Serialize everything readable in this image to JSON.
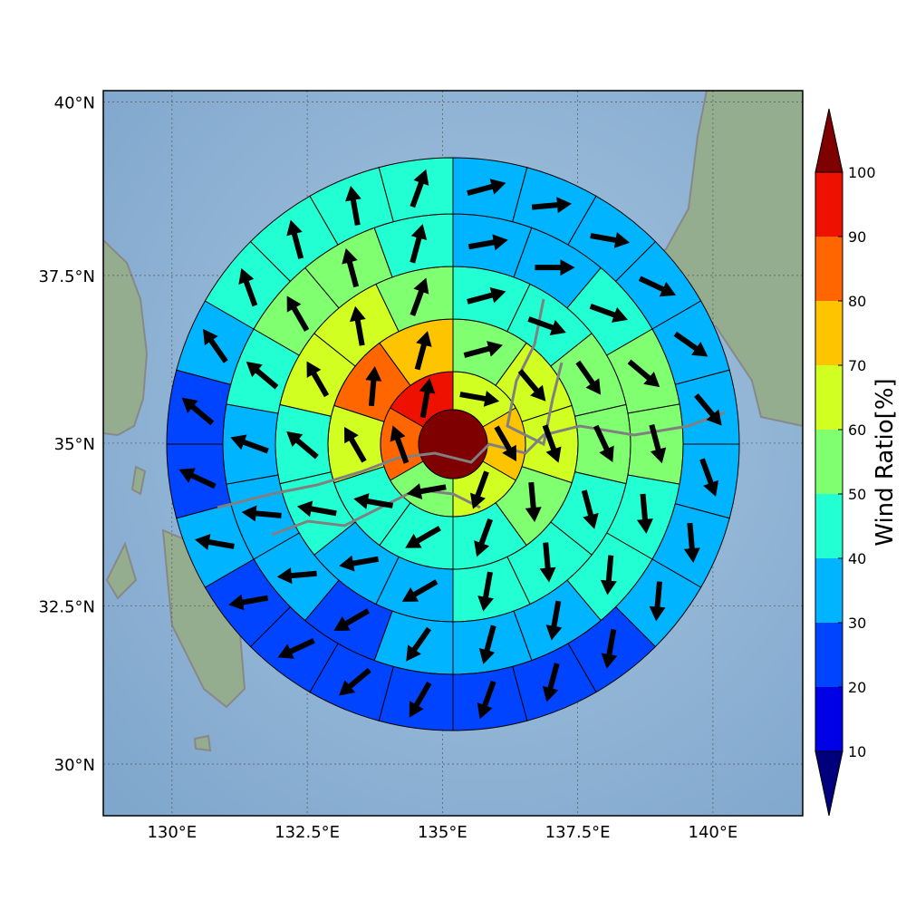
{
  "chart_data": {
    "type": "polar_sectors",
    "projection": "mercator",
    "xlim": [
      128.73,
      141.66
    ],
    "ylim": [
      29.17,
      40.16
    ],
    "xticks": [
      {
        "value": 130,
        "label": "130°E"
      },
      {
        "value": 132.5,
        "label": "132.5°E"
      },
      {
        "value": 135,
        "label": "135°E"
      },
      {
        "value": 137.5,
        "label": "137.5°E"
      },
      {
        "value": 140,
        "label": "140°E"
      }
    ],
    "yticks": [
      {
        "value": 30,
        "label": "30°N"
      },
      {
        "value": 32.5,
        "label": "32.5°N"
      },
      {
        "value": 35,
        "label": "35°N"
      },
      {
        "value": 37.5,
        "label": "37.5°N"
      },
      {
        "value": 40,
        "label": "40°N"
      }
    ],
    "grid": true,
    "center_value": 105,
    "rings": [
      {
        "values": [
          65,
          75,
          65,
          55,
          85,
          95
        ],
        "directions": [
          100,
          150,
          200,
          260,
          340,
          10
        ]
      },
      {
        "values": [
          55,
          65,
          65,
          55,
          45,
          45,
          45,
          65,
          85,
          75
        ],
        "directions": [
          75,
          140,
          160,
          175,
          200,
          240,
          280,
          330,
          5,
          15
        ]
      },
      {
        "values": [
          45,
          45,
          55,
          55,
          45,
          45,
          45,
          35,
          35,
          45,
          45,
          65,
          65,
          55
        ],
        "directions": [
          75,
          110,
          145,
          155,
          165,
          175,
          190,
          240,
          260,
          280,
          310,
          330,
          350,
          20
        ]
      },
      {
        "values": [
          35,
          35,
          45,
          55,
          55,
          45,
          45,
          35,
          35,
          35,
          25,
          35,
          35,
          35,
          45,
          55,
          55,
          45
        ],
        "directions": [
          80,
          90,
          110,
          130,
          165,
          175,
          185,
          190,
          195,
          215,
          240,
          265,
          275,
          290,
          310,
          330,
          345,
          15
        ]
      },
      {
        "values": [
          35,
          35,
          35,
          35,
          35,
          35,
          35,
          35,
          35,
          25,
          25,
          25,
          25,
          25,
          25,
          25,
          35,
          25,
          25,
          35,
          45,
          45,
          45,
          45
        ],
        "directions": [
          75,
          85,
          100,
          115,
          125,
          140,
          160,
          175,
          185,
          190,
          195,
          200,
          210,
          230,
          245,
          260,
          280,
          295,
          310,
          325,
          340,
          345,
          350,
          20
        ]
      }
    ],
    "colorbar": {
      "label": "Wind Ratio[%]",
      "ticks": [
        10,
        20,
        30,
        40,
        50,
        60,
        70,
        80,
        90,
        100
      ],
      "colors": [
        "#0000e6",
        "#0044ff",
        "#00b4ff",
        "#22ffd2",
        "#80ff70",
        "#d2ff22",
        "#ffc400",
        "#ff6600",
        "#ee1100"
      ],
      "under_color": "#00007f",
      "over_color": "#7f0000"
    }
  }
}
